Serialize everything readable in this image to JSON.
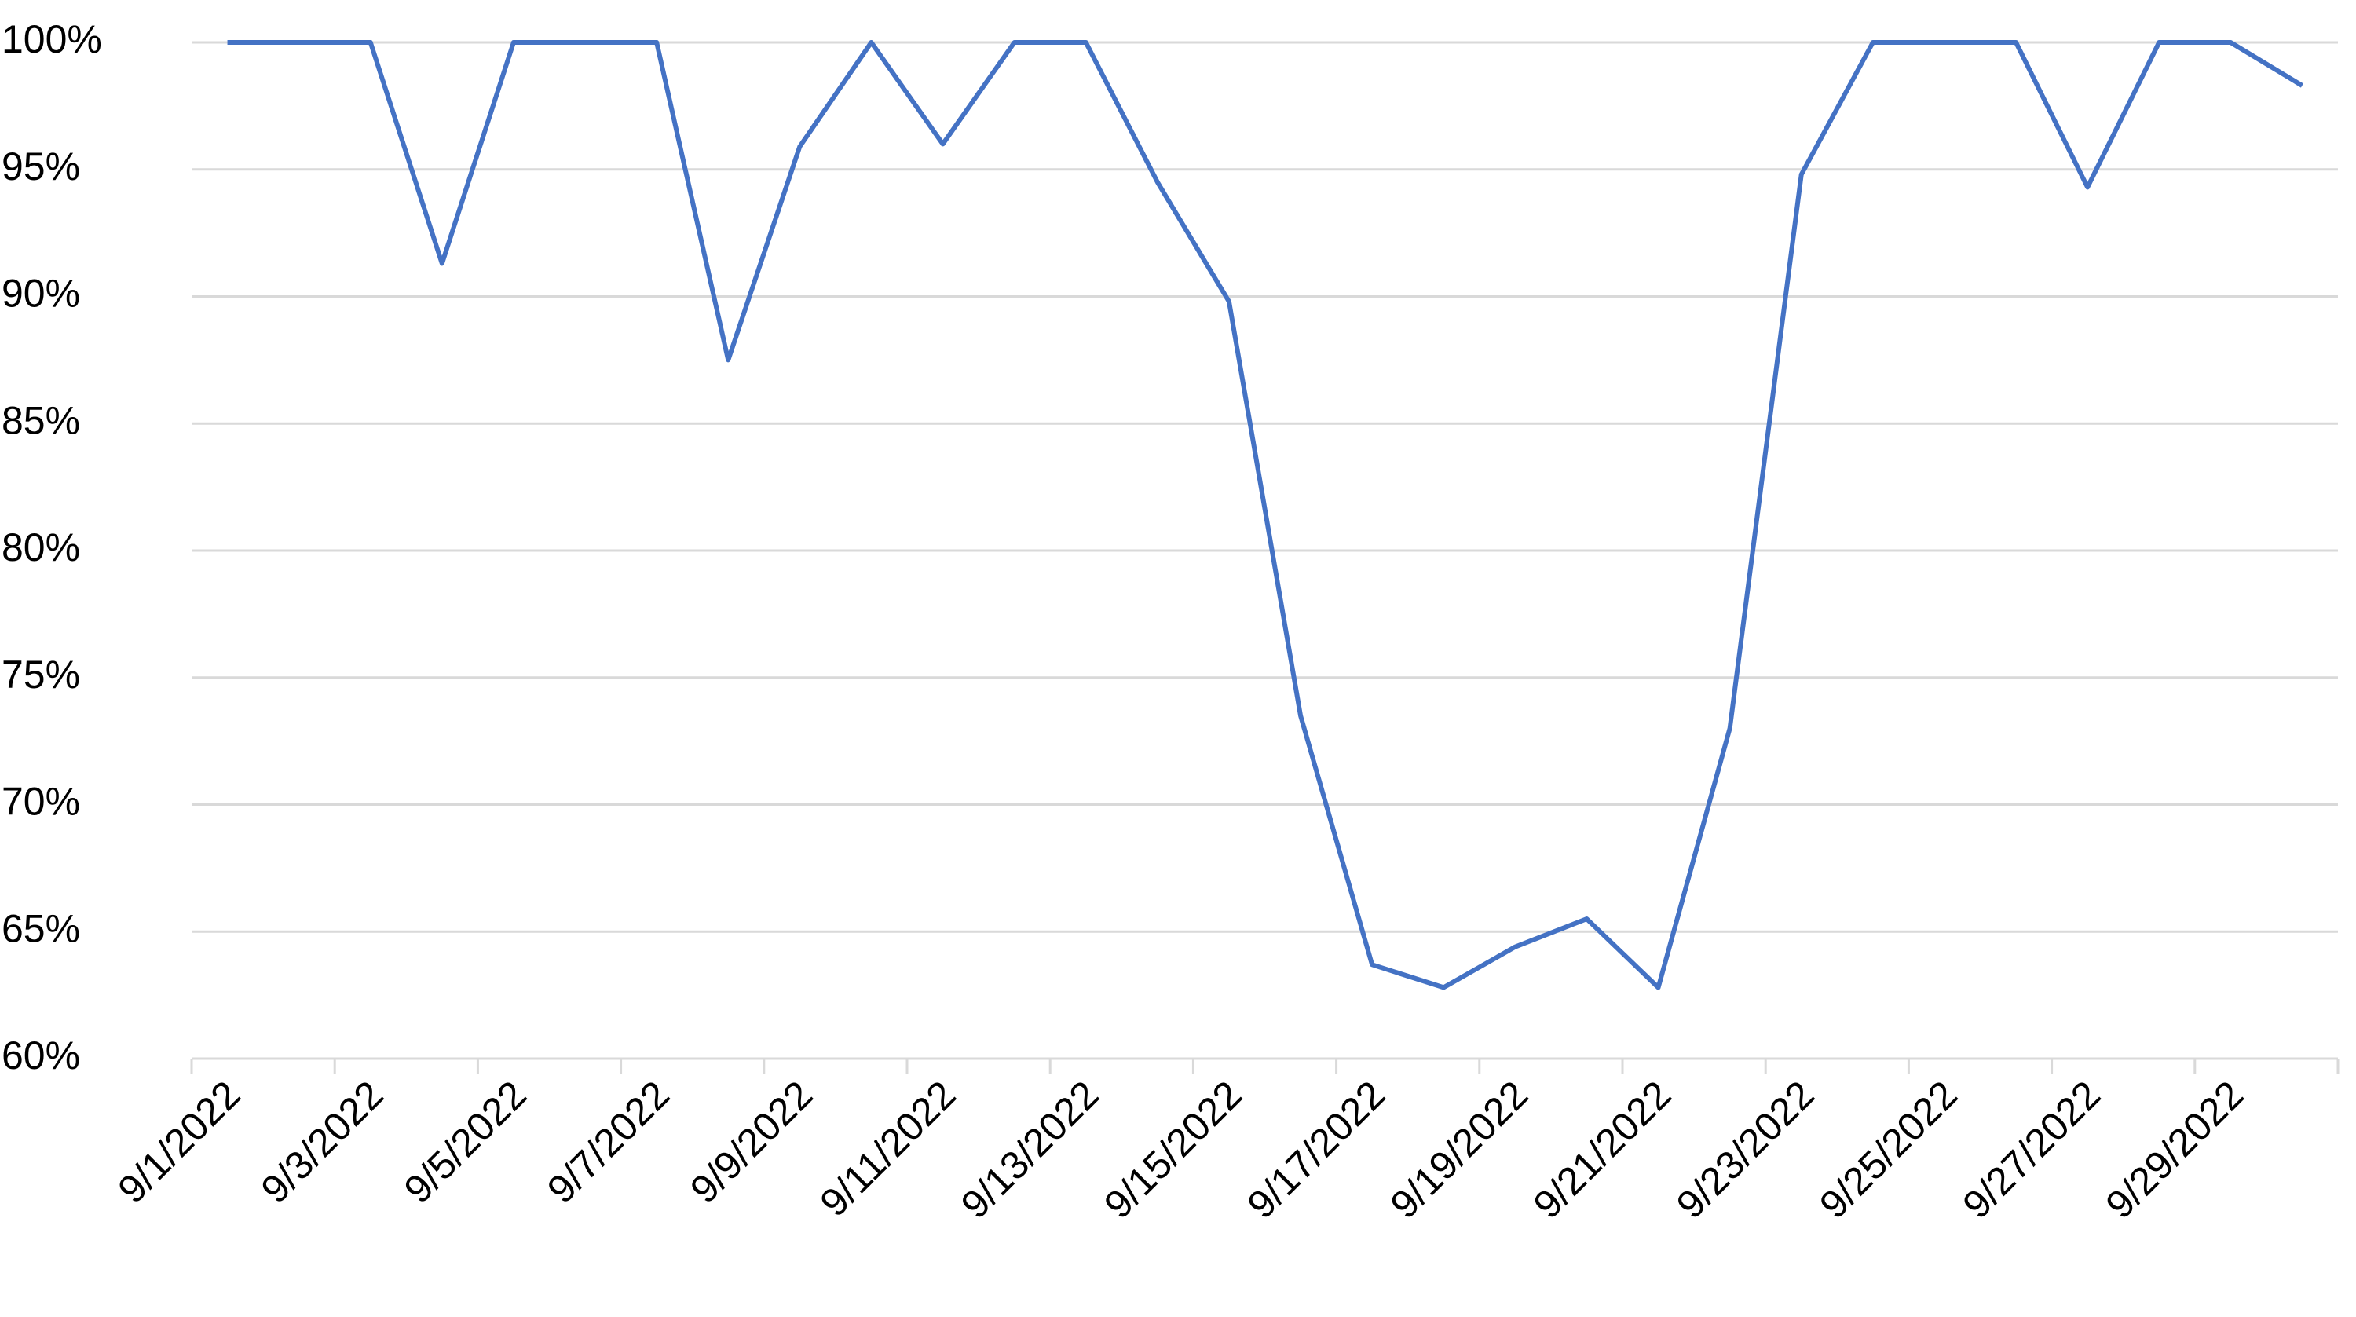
{
  "chart_data": {
    "type": "line",
    "categories": [
      "9/1/2022",
      null,
      "9/3/2022",
      null,
      "9/5/2022",
      null,
      "9/7/2022",
      null,
      "9/9/2022",
      null,
      "9/11/2022",
      null,
      "9/13/2022",
      null,
      "9/15/2022",
      null,
      "9/17/2022",
      null,
      "9/19/2022",
      null,
      "9/21/2022",
      null,
      "9/23/2022",
      null,
      "9/25/2022",
      null,
      "9/27/2022",
      null,
      "9/29/2022",
      null
    ],
    "values": [
      100,
      100,
      100,
      91.3,
      100,
      100,
      100,
      87.5,
      95.9,
      100,
      96.0,
      100,
      100,
      94.5,
      89.8,
      73.5,
      63.7,
      62.8,
      64.4,
      65.5,
      62.8,
      73.0,
      94.8,
      100,
      100,
      100,
      94.3,
      100,
      100,
      98.3
    ],
    "color": "#4472c4",
    "ylim": [
      60,
      100
    ],
    "yticks": [
      {
        "value": 60,
        "label": "60%"
      },
      {
        "value": 65,
        "label": "65%"
      },
      {
        "value": 70,
        "label": "70%"
      },
      {
        "value": 75,
        "label": "75%"
      },
      {
        "value": 80,
        "label": "80%"
      },
      {
        "value": 85,
        "label": "85%"
      },
      {
        "value": 90,
        "label": "90%"
      },
      {
        "value": 95,
        "label": "95%"
      },
      {
        "value": 100,
        "label": "100%"
      }
    ],
    "grid": true
  }
}
